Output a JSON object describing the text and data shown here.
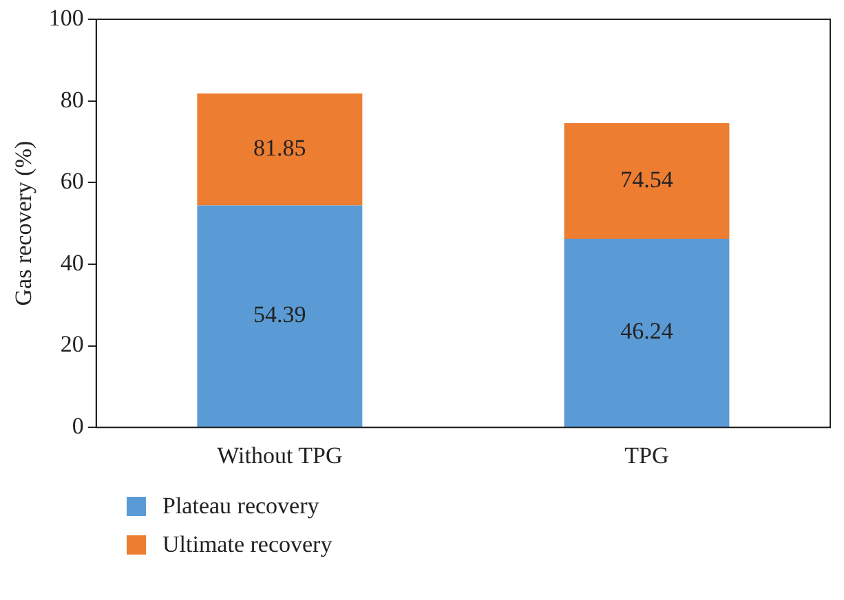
{
  "chart_data": {
    "type": "bar",
    "ylabel": "Gas recovery (%)",
    "categories": [
      "Without TPG",
      "TPG"
    ],
    "stacked": true,
    "totals": [
      "81.85",
      "74.54"
    ],
    "series": [
      {
        "name": "Plateau recovery",
        "color": "#5b9bd5",
        "values": [
          54.39,
          46.24
        ],
        "value_labels": [
          "54.39",
          "46.24"
        ]
      },
      {
        "name": "Ultimate recovery",
        "color": "#ed7d31",
        "values": [
          27.46,
          28.3
        ]
      }
    ],
    "ylim": [
      0,
      100
    ],
    "yticks": [
      0,
      20,
      40,
      60,
      80,
      100
    ],
    "grid": false,
    "legend": "bottom left"
  }
}
